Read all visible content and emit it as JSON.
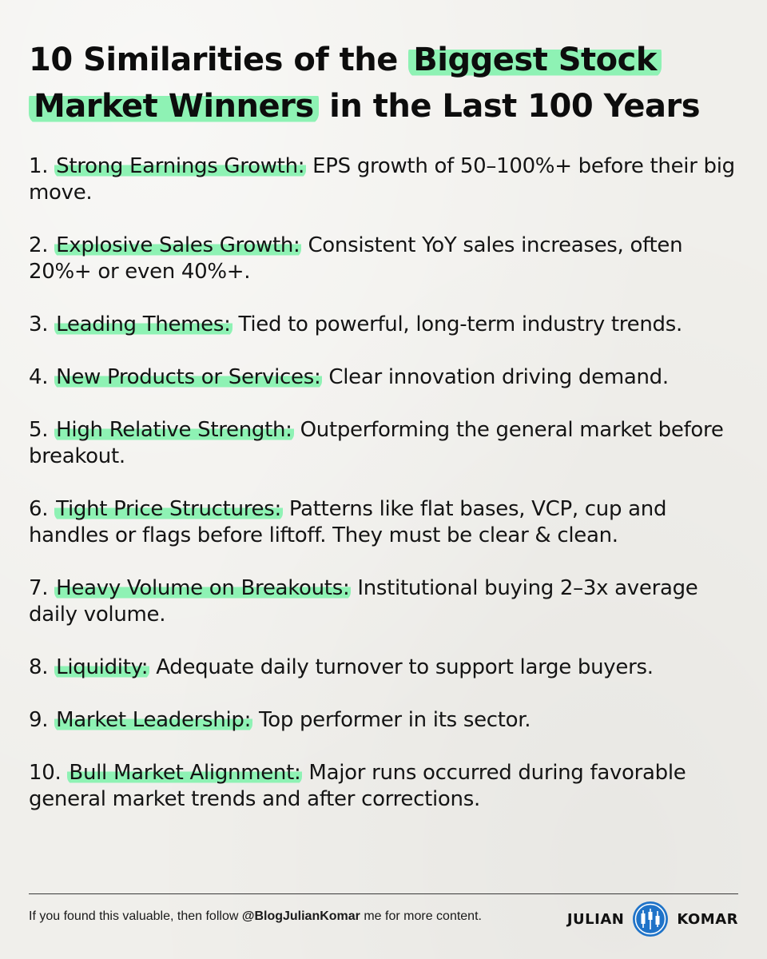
{
  "title": {
    "part1": "10 Similarities of the ",
    "highlight1": "Biggest Stock",
    "highlight2": "Market Winners",
    "part2": " in the Last 100 Years"
  },
  "items": [
    {
      "num": "1. ",
      "key": "Strong Earnings Growth:",
      "text": " EPS growth of 50–100%+ before their big move."
    },
    {
      "num": "2. ",
      "key": "Explosive Sales Growth:",
      "text": " Consistent YoY sales increases, often 20%+ or even 40%+."
    },
    {
      "num": "3. ",
      "key": "Leading Themes:",
      "text": " Tied to powerful, long-term industry trends."
    },
    {
      "num": "4. ",
      "key": "New Products or Services:",
      "text": " Clear innovation driving demand."
    },
    {
      "num": "5. ",
      "key": "High Relative Strength:",
      "text": " Outperforming the general market before breakout."
    },
    {
      "num": "6. ",
      "key": "Tight Price Structures:",
      "text": " Patterns like flat bases, VCP, cup and handles or flags before liftoff. They must be clear & clean."
    },
    {
      "num": "7. ",
      "key": "Heavy Volume on Breakouts:",
      "text": " Institutional buying 2–3x average daily volume."
    },
    {
      "num": "8. ",
      "key": "Liquidity:",
      "text": " Adequate daily turnover to support large buyers."
    },
    {
      "num": "9. ",
      "key": "Market Leadership:",
      "text": " Top performer in its sector."
    },
    {
      "num": "10. ",
      "key": "Bull Market Alignment:",
      "text": " Major runs occurred during favorable general market trends and after corrections."
    }
  ],
  "footer": {
    "prefix": "If you found this valuable, then follow ",
    "handle": "@BlogJulianKomar",
    "suffix": " me for more content."
  },
  "brand": {
    "first": "JULIAN",
    "last": "KOMAR",
    "logo_icon": "candlestick-chart-icon",
    "logo_color": "#1f73c8"
  },
  "colors": {
    "highlight": "#8ef2b4",
    "background": "#f0efeb",
    "text": "#111111"
  }
}
